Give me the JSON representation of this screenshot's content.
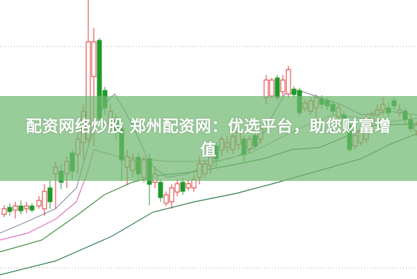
{
  "headline": "配资网络炒股 郑州配资网：优选平台，助您财富增值",
  "colors": {
    "banner": "#70b870",
    "up_candle": "#e03030",
    "down_candle": "#1f9a2a",
    "grid": "#999999"
  },
  "background_image": "stock-candlestick-chart"
}
